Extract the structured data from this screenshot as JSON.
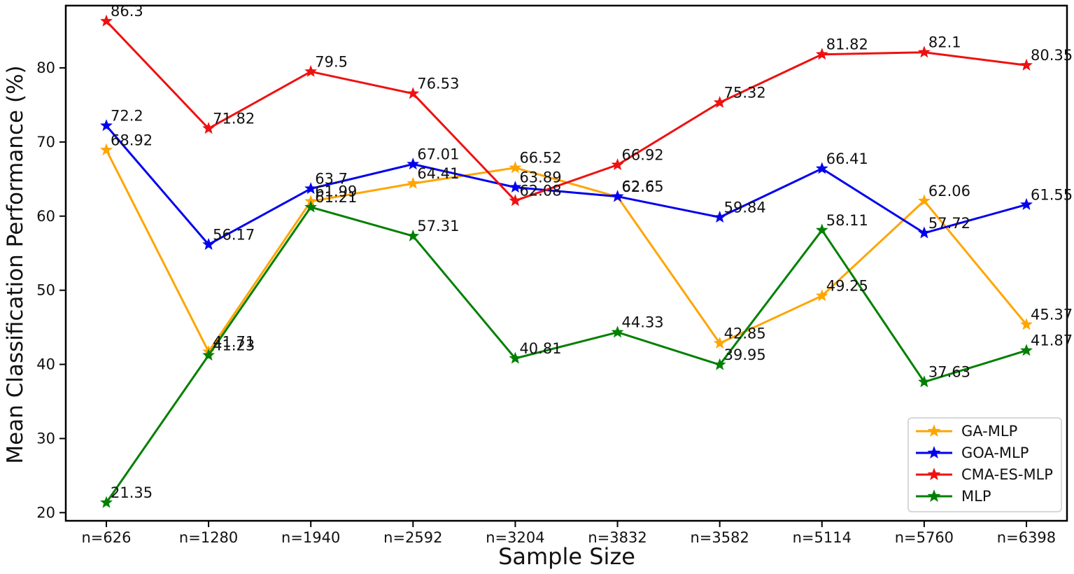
{
  "figure": {
    "background": "#ffffff",
    "frame_color": "#000000"
  },
  "chart_data": {
    "type": "line",
    "title": "",
    "xlabel": "Sample Size",
    "ylabel": "Mean Classification Performance (%)",
    "categories": [
      "n=626",
      "n=1280",
      "n=1940",
      "n=2592",
      "n=3204",
      "n=3832",
      "n=3582",
      "n=5114",
      "n=5760",
      "n=6398"
    ],
    "yticks": [
      20,
      30,
      40,
      50,
      60,
      70,
      80
    ],
    "ylim": [
      18.9,
      88.4
    ],
    "grid": false,
    "legend_position": "lower right",
    "marker": "star",
    "point_labels_shown": true,
    "series": [
      {
        "name": "GA-MLP",
        "color": "#FFA500",
        "values": [
          68.92,
          41.71,
          61.99,
          64.41,
          66.52,
          62.6,
          42.85,
          49.25,
          62.06,
          45.37
        ]
      },
      {
        "name": "GOA-MLP",
        "color": "#0000EE",
        "values": [
          72.2,
          56.17,
          63.7,
          67.01,
          63.89,
          62.65,
          59.84,
          66.41,
          57.72,
          61.55
        ]
      },
      {
        "name": "CMA-ES-MLP",
        "color": "#EE1111",
        "values": [
          86.3,
          71.82,
          79.5,
          76.53,
          62.08,
          66.92,
          75.32,
          81.82,
          82.1,
          80.35
        ]
      },
      {
        "name": "MLP",
        "color": "#008000",
        "values": [
          21.35,
          41.23,
          61.21,
          57.31,
          40.81,
          44.33,
          39.95,
          58.11,
          37.63,
          41.87
        ]
      }
    ],
    "annotation_color": "#111111"
  }
}
